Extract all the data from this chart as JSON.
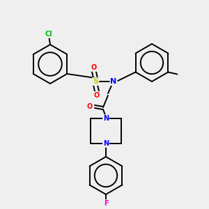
{
  "background_color": "#efefef",
  "bond_color": "#000000",
  "atom_colors": {
    "Cl": "#00bb00",
    "S": "#cccc00",
    "O": "#ff0000",
    "N": "#0000ff",
    "F": "#ff00cc",
    "C": "#000000"
  },
  "figsize": [
    3.0,
    3.0
  ],
  "dpi": 100,
  "lw": 1.4,
  "fontsize": 7.5
}
